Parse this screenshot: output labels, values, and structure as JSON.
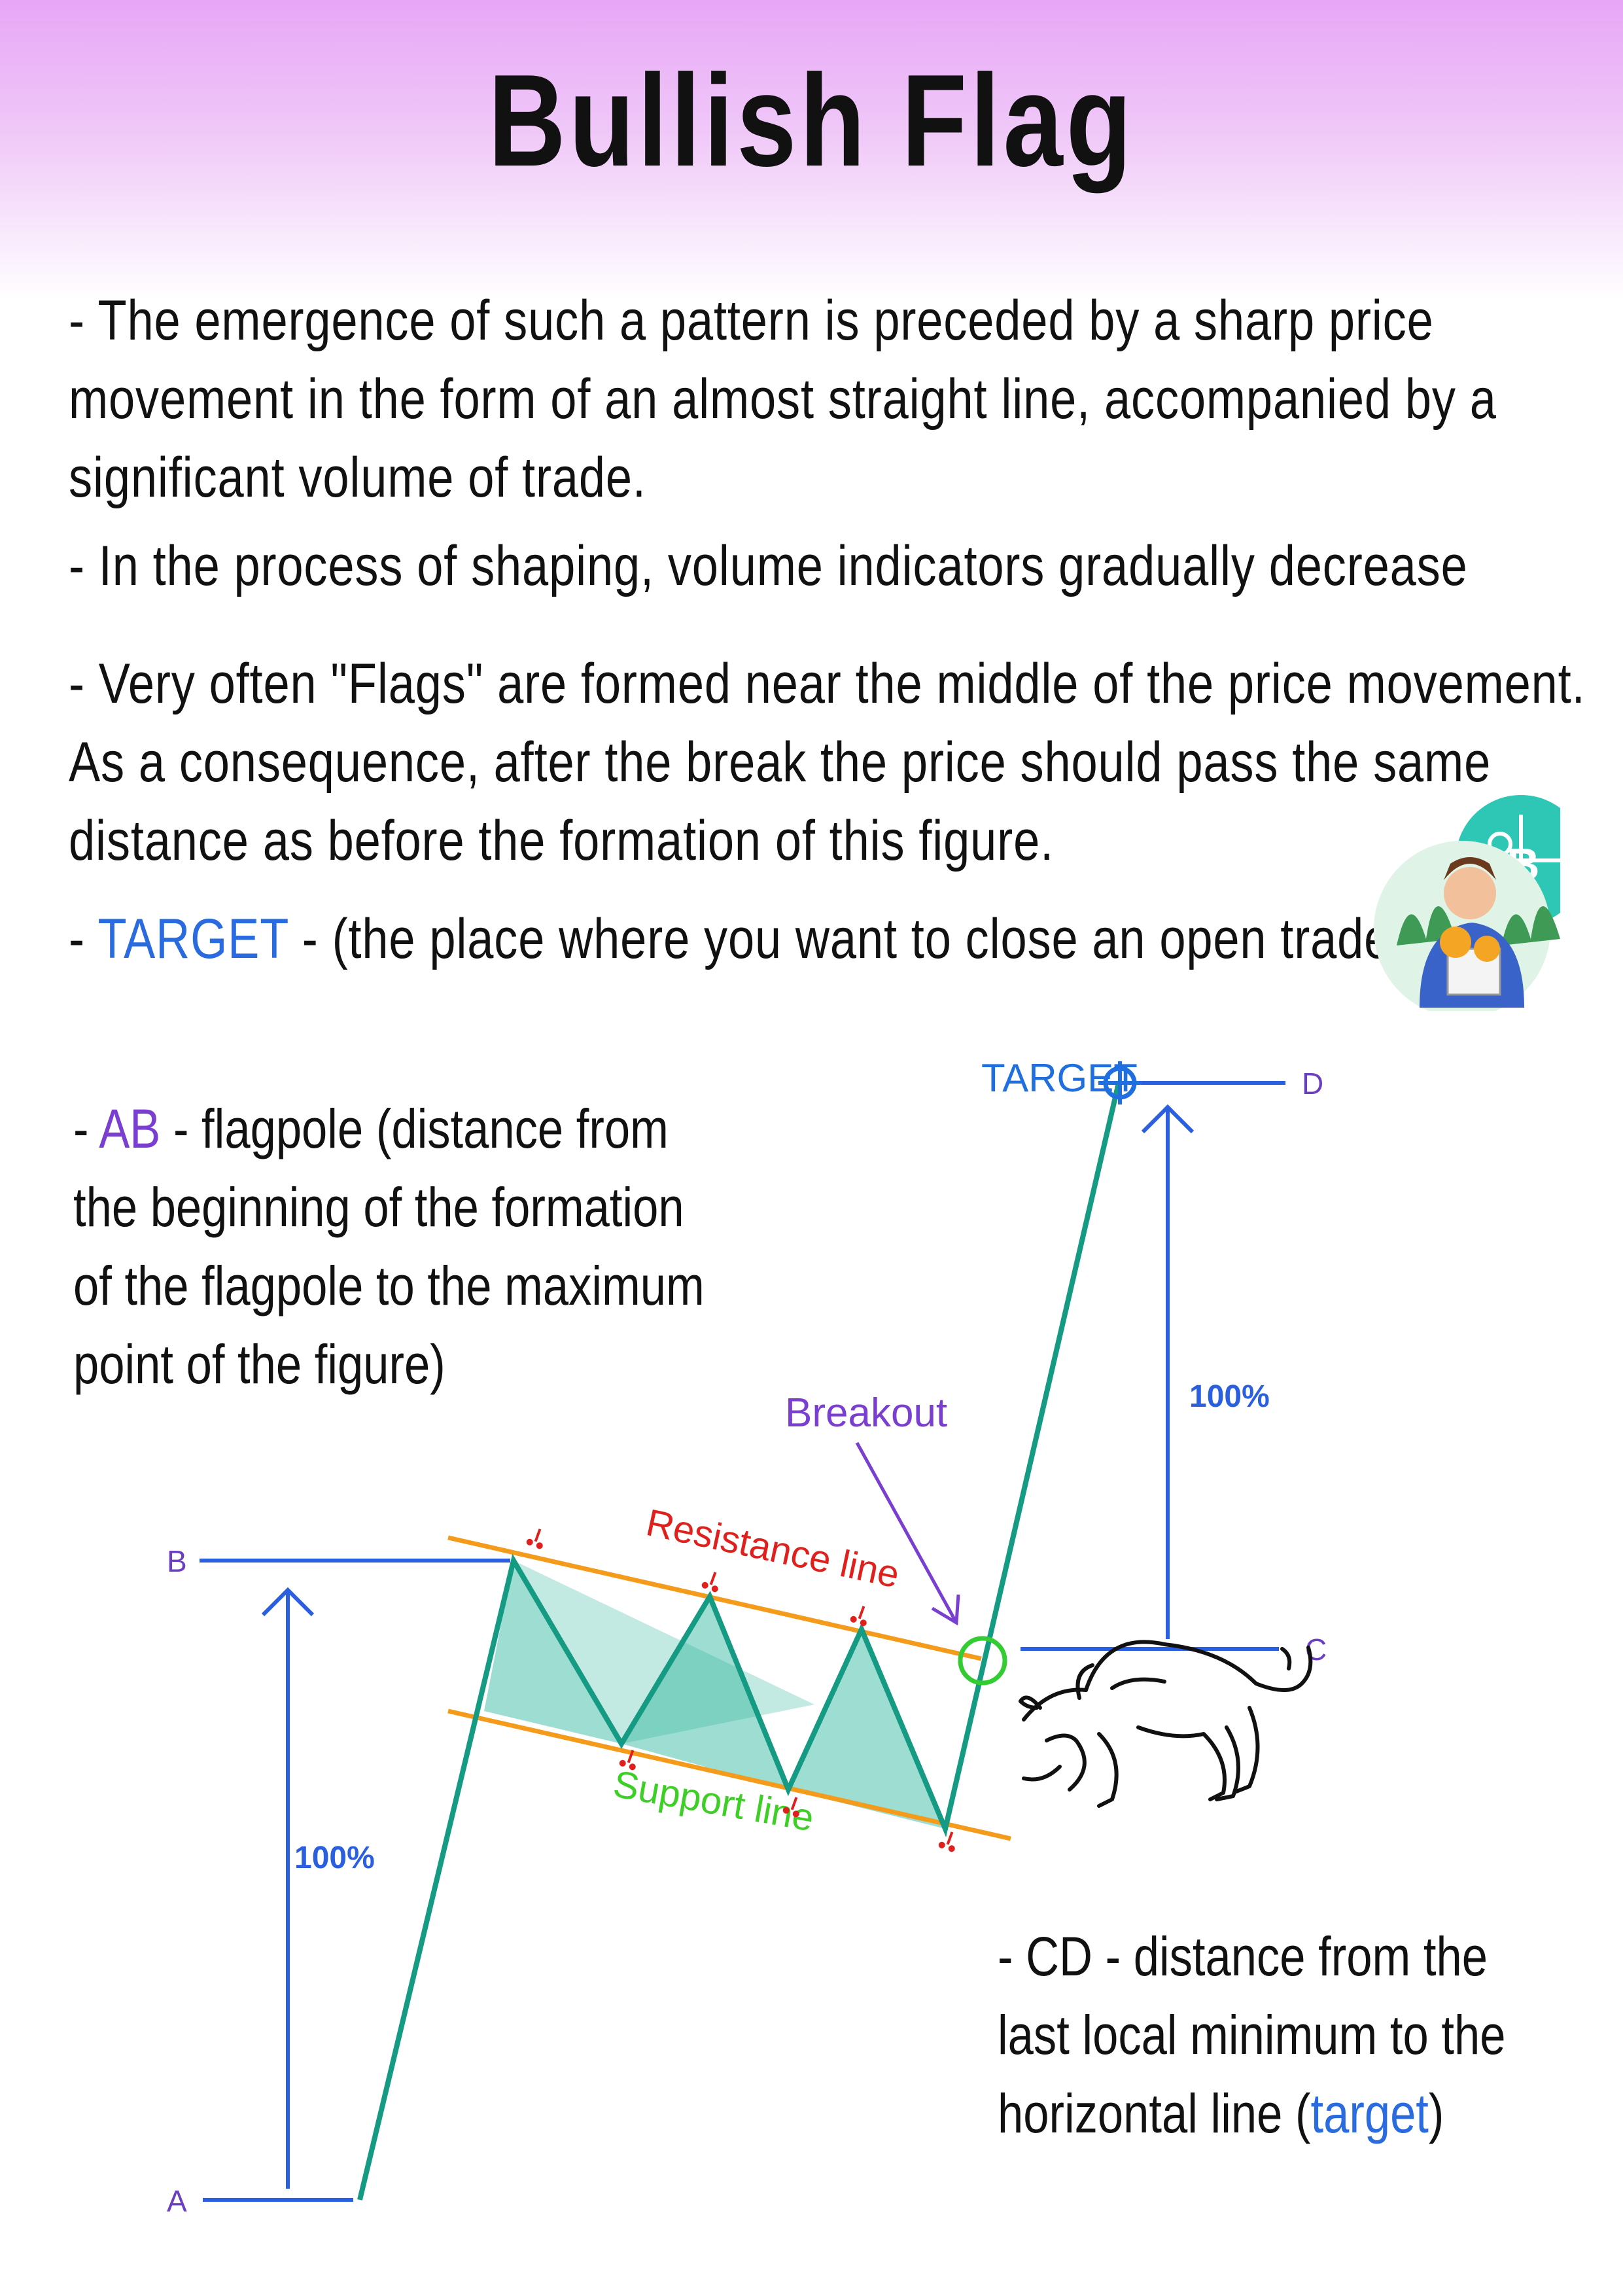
{
  "title": "Bullish Flag",
  "bullets": {
    "b1_l1": "- The emergence of such a pattern is preceded by a sharp price",
    "b1_l2": "movement in the form of an almost straight line, accompanied by a",
    "b1_l3": "significant volume of trade.",
    "b2": "- In the process of shaping, volume indicators gradually decrease",
    "b3_l1": "- Very often \"Flags\" are formed near the middle of the price movement.",
    "b3_l2": " As a consequence, after the break the price should pass the same",
    "b3_l3": "distance as before the formation of this figure.",
    "b4_prefix": "- ",
    "b4_target": "TARGET",
    "b4_rest": " - (the place where you want to close an open trade)"
  },
  "ab_note": {
    "prefix": "- ",
    "ab": "AB",
    "l1_rest": " - flagpole (distance from",
    "l2": "the beginning of the formation",
    "l3": "of the flagpole to the maximum",
    "l4": "point of the figure)"
  },
  "cd_note": {
    "l1": "- CD - distance from the",
    "l2": "last local minimum to the",
    "l3_prefix": "horizontal line (",
    "l3_target": "target",
    "l3_suffix": ")"
  },
  "diagram": {
    "point_a": "A",
    "point_b": "B",
    "point_c": "C",
    "point_d": "D",
    "target_label": "TARGET",
    "breakout_label": "Breakout",
    "resistance_label": "Resistance line",
    "support_label": "Support line",
    "pct_ab": "100%",
    "pct_cd": "100%"
  },
  "colors": {
    "header_gradient": "#e7a6f6",
    "price_line": "#159a83",
    "flag_fill": "#27b398",
    "channel_lines": "#f49b1c",
    "measure_lines": "#2a5fe0",
    "point_labels": "#6b3fbf",
    "breakout": "#7a3fd0",
    "resistance_text": "#e0201c",
    "support_text": "#3ecf27",
    "breakout_circle": "#33cc33",
    "target_marker": "#1f6fe0"
  },
  "icons": [
    "bitcoin-investor-icon",
    "bull-icon",
    "target-crosshair-icon",
    "scissors-marker-icon"
  ]
}
